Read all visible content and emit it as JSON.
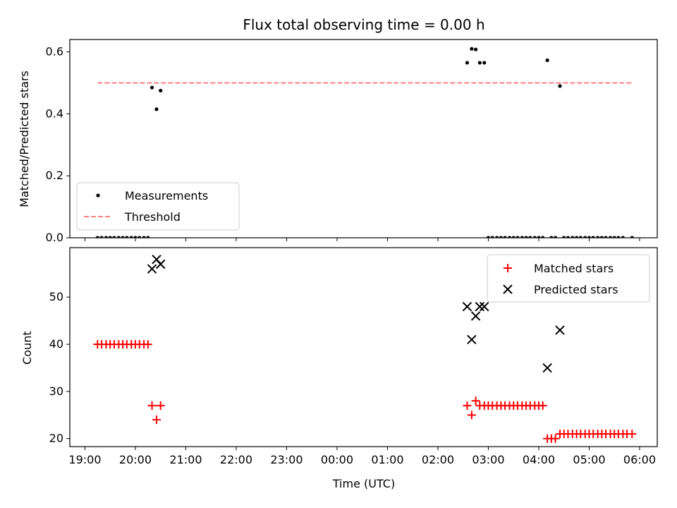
{
  "chart_data": {
    "title": "Flux total observing time = 0.00 h",
    "xlabel": "Time (UTC)",
    "x_ticks": [
      "19:00",
      "20:00",
      "21:00",
      "22:00",
      "23:00",
      "00:00",
      "01:00",
      "02:00",
      "03:00",
      "04:00",
      "05:00",
      "06:00"
    ],
    "xlim_hours": [
      18.7,
      30.35
    ],
    "panels": [
      {
        "type": "scatter",
        "ylabel": "Matched/Predicted stars",
        "ylim": [
          0,
          0.64
        ],
        "y_ticks": [
          "0.0",
          "0.2",
          "0.4",
          "0.6"
        ],
        "legend": {
          "position": "lower-left",
          "entries": [
            "Measurements",
            "Threshold"
          ]
        },
        "threshold": {
          "name": "Threshold",
          "y": 0.5,
          "x_range_hours": [
            19.25,
            29.85
          ],
          "color": "#ff7f7f"
        },
        "series": [
          {
            "name": "Measurements",
            "color": "#000000",
            "points": [
              [
                19.25,
                0
              ],
              [
                19.33,
                0
              ],
              [
                19.42,
                0
              ],
              [
                19.5,
                0
              ],
              [
                19.58,
                0
              ],
              [
                19.67,
                0
              ],
              [
                19.75,
                0
              ],
              [
                19.83,
                0
              ],
              [
                19.92,
                0
              ],
              [
                20.0,
                0
              ],
              [
                20.08,
                0
              ],
              [
                20.17,
                0
              ],
              [
                20.25,
                0
              ],
              [
                20.33,
                0.485
              ],
              [
                20.42,
                0.415
              ],
              [
                20.5,
                0.475
              ],
              [
                26.58,
                0.565
              ],
              [
                26.67,
                0.61
              ],
              [
                26.75,
                0.608
              ],
              [
                26.83,
                0.565
              ],
              [
                26.92,
                0.565
              ],
              [
                27.0,
                0
              ],
              [
                27.08,
                0
              ],
              [
                27.17,
                0
              ],
              [
                27.25,
                0
              ],
              [
                27.33,
                0
              ],
              [
                27.42,
                0
              ],
              [
                27.5,
                0
              ],
              [
                27.58,
                0
              ],
              [
                27.67,
                0
              ],
              [
                27.75,
                0
              ],
              [
                27.83,
                0
              ],
              [
                27.92,
                0
              ],
              [
                28.0,
                0
              ],
              [
                28.08,
                0
              ],
              [
                28.17,
                0.573
              ],
              [
                28.25,
                0
              ],
              [
                28.33,
                0
              ],
              [
                28.42,
                0.49
              ],
              [
                28.5,
                0
              ],
              [
                28.58,
                0
              ],
              [
                28.67,
                0
              ],
              [
                28.75,
                0
              ],
              [
                28.83,
                0
              ],
              [
                28.92,
                0
              ],
              [
                29.0,
                0
              ],
              [
                29.08,
                0
              ],
              [
                29.17,
                0
              ],
              [
                29.25,
                0
              ],
              [
                29.33,
                0
              ],
              [
                29.42,
                0
              ],
              [
                29.5,
                0
              ],
              [
                29.58,
                0
              ],
              [
                29.67,
                0
              ],
              [
                29.85,
                0
              ]
            ]
          }
        ]
      },
      {
        "type": "scatter",
        "ylabel": "Count",
        "ylim": [
          18.3,
          60.5
        ],
        "y_ticks": [
          "20",
          "30",
          "40",
          "50"
        ],
        "legend": {
          "position": "top-right",
          "entries": [
            "Matched stars",
            "Predicted stars"
          ]
        },
        "series": [
          {
            "name": "Matched stars",
            "marker": "+",
            "color": "#ff0000",
            "points": [
              [
                19.25,
                40
              ],
              [
                19.33,
                40
              ],
              [
                19.42,
                40
              ],
              [
                19.5,
                40
              ],
              [
                19.58,
                40
              ],
              [
                19.67,
                40
              ],
              [
                19.75,
                40
              ],
              [
                19.83,
                40
              ],
              [
                19.92,
                40
              ],
              [
                20.0,
                40
              ],
              [
                20.08,
                40
              ],
              [
                20.17,
                40
              ],
              [
                20.25,
                40
              ],
              [
                20.33,
                27
              ],
              [
                20.42,
                24
              ],
              [
                20.5,
                27
              ],
              [
                26.58,
                27
              ],
              [
                26.67,
                25
              ],
              [
                26.75,
                28
              ],
              [
                26.83,
                27
              ],
              [
                26.92,
                27
              ],
              [
                27.0,
                27
              ],
              [
                27.08,
                27
              ],
              [
                27.17,
                27
              ],
              [
                27.25,
                27
              ],
              [
                27.33,
                27
              ],
              [
                27.42,
                27
              ],
              [
                27.5,
                27
              ],
              [
                27.58,
                27
              ],
              [
                27.67,
                27
              ],
              [
                27.75,
                27
              ],
              [
                27.83,
                27
              ],
              [
                27.92,
                27
              ],
              [
                28.0,
                27
              ],
              [
                28.08,
                27
              ],
              [
                28.17,
                20
              ],
              [
                28.25,
                20
              ],
              [
                28.33,
                20
              ],
              [
                28.42,
                21
              ],
              [
                28.5,
                21
              ],
              [
                28.58,
                21
              ],
              [
                28.67,
                21
              ],
              [
                28.75,
                21
              ],
              [
                28.83,
                21
              ],
              [
                28.92,
                21
              ],
              [
                29.0,
                21
              ],
              [
                29.08,
                21
              ],
              [
                29.17,
                21
              ],
              [
                29.25,
                21
              ],
              [
                29.33,
                21
              ],
              [
                29.42,
                21
              ],
              [
                29.5,
                21
              ],
              [
                29.58,
                21
              ],
              [
                29.67,
                21
              ],
              [
                29.75,
                21
              ],
              [
                29.85,
                21
              ]
            ]
          },
          {
            "name": "Predicted stars",
            "marker": "x",
            "color": "#000000",
            "points": [
              [
                20.33,
                56
              ],
              [
                20.42,
                58
              ],
              [
                20.5,
                57
              ],
              [
                26.58,
                48
              ],
              [
                26.67,
                41
              ],
              [
                26.75,
                46
              ],
              [
                26.83,
                48
              ],
              [
                26.92,
                48
              ],
              [
                28.17,
                35
              ],
              [
                28.42,
                43
              ]
            ]
          }
        ]
      }
    ]
  }
}
